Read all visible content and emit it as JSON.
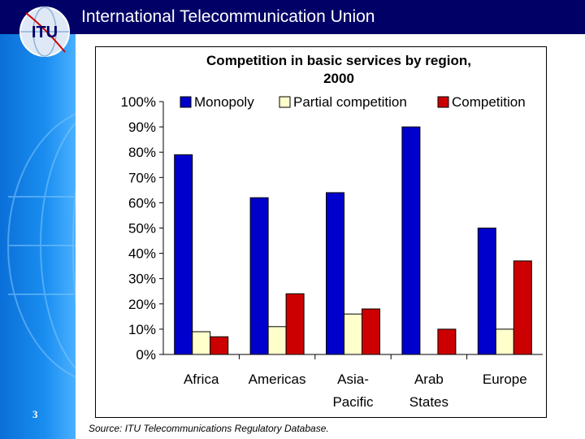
{
  "header": {
    "title": "International Telecommunication Union"
  },
  "logo": {
    "text": "ITU",
    "icon": "itu-globe-logo"
  },
  "slide": {
    "number": "3"
  },
  "source": "Source: ITU Telecommunications Regulatory Database.",
  "colors": {
    "header_bg": "#000066",
    "sidebar": "#1a8ef0",
    "monopoly": "#0000cc",
    "partial": "#ffffcc",
    "competition": "#cc0000"
  },
  "chart_data": {
    "type": "bar",
    "title": "Competition in basic services by region, 2000",
    "title_lines": [
      "Competition in basic services by region,",
      "2000"
    ],
    "xlabel": "",
    "ylabel": "",
    "ylim": [
      0,
      100
    ],
    "yticks": [
      "0%",
      "10%",
      "20%",
      "30%",
      "40%",
      "50%",
      "60%",
      "70%",
      "80%",
      "90%",
      "100%"
    ],
    "legend_position": "top",
    "categories": [
      "Africa",
      "Americas",
      "Asia-Pacific",
      "Arab States",
      "Europe"
    ],
    "category_lines": [
      [
        "Africa"
      ],
      [
        "Americas"
      ],
      [
        "Asia-",
        "Pacific"
      ],
      [
        "Arab",
        "States"
      ],
      [
        "Europe"
      ]
    ],
    "series": [
      {
        "name": "Monopoly",
        "values": [
          79,
          62,
          64,
          90,
          50
        ]
      },
      {
        "name": "Partial competition",
        "values": [
          9,
          11,
          16,
          0,
          10
        ]
      },
      {
        "name": "Competition",
        "values": [
          7,
          24,
          18,
          10,
          37
        ]
      }
    ]
  }
}
